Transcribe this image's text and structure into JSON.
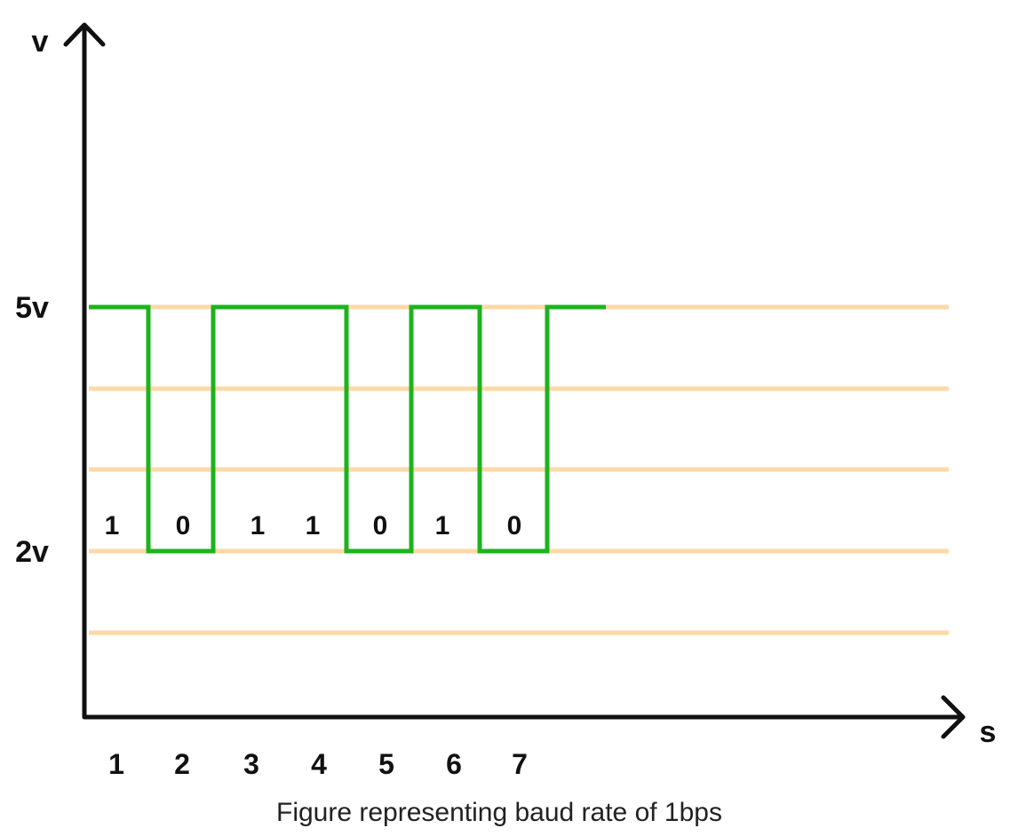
{
  "axes": {
    "y_label": "v",
    "x_label": "s"
  },
  "levels": {
    "high_label": "5v",
    "low_label": "2v"
  },
  "bits": [
    "1",
    "0",
    "1",
    "1",
    "0",
    "1",
    "0"
  ],
  "time_ticks": [
    "1",
    "2",
    "3",
    "4",
    "5",
    "6",
    "7"
  ],
  "caption": "Figure representing baud rate of 1bps",
  "colors": {
    "signal": "#1db31d",
    "gridlines": "#fdd9a6",
    "axis": "#111111",
    "background": "#ffffff"
  }
}
